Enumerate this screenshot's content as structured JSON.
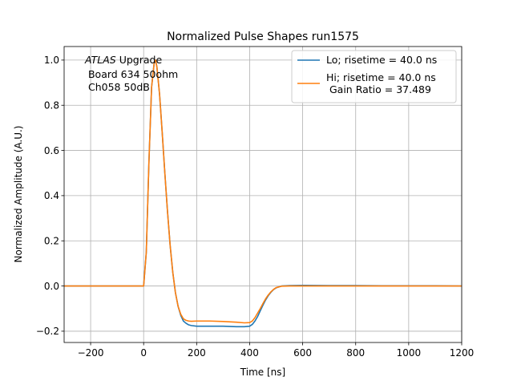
{
  "chart_data": {
    "type": "line",
    "title": "Normalized Pulse Shapes run1575",
    "xlabel": "Time [ns]",
    "ylabel": "Normalized Amplitude (A.U.)",
    "xlim": [
      -300,
      1200
    ],
    "ylim": [
      -0.25,
      1.06
    ],
    "xticks": [
      -200,
      0,
      200,
      400,
      600,
      800,
      1000,
      1200
    ],
    "xtick_labels": [
      "−200",
      "0",
      "200",
      "400",
      "600",
      "800",
      "1000",
      "1200"
    ],
    "yticks": [
      -0.2,
      0.0,
      0.2,
      0.4,
      0.6,
      0.8,
      1.0
    ],
    "ytick_labels": [
      "−0.2",
      "0.0",
      "0.2",
      "0.4",
      "0.6",
      "0.8",
      "1.0"
    ],
    "grid": true,
    "legend_position": "top-right",
    "annotation": {
      "atlas": "ATLAS",
      "upgrade": " Upgrade",
      "board": " Board 634 50ohm",
      "channel": " Ch058 50dB"
    },
    "series": [
      {
        "name": "Lo; risetime = 40.0 ns",
        "color": "#1f77b4",
        "x": [
          -300,
          -100,
          0,
          10,
          20,
          30,
          40,
          45,
          50,
          60,
          70,
          80,
          90,
          100,
          110,
          120,
          130,
          140,
          150,
          160,
          170,
          180,
          200,
          250,
          300,
          350,
          380,
          400,
          410,
          420,
          430,
          440,
          450,
          460,
          470,
          480,
          490,
          500,
          520,
          550,
          600,
          700,
          800,
          900,
          1000,
          1100,
          1200
        ],
        "y": [
          0.0,
          0.0,
          0.0,
          0.15,
          0.55,
          0.88,
          0.99,
          1.0,
          0.97,
          0.85,
          0.68,
          0.5,
          0.33,
          0.18,
          0.06,
          -0.03,
          -0.09,
          -0.13,
          -0.155,
          -0.165,
          -0.172,
          -0.175,
          -0.178,
          -0.178,
          -0.178,
          -0.18,
          -0.18,
          -0.178,
          -0.17,
          -0.155,
          -0.135,
          -0.11,
          -0.085,
          -0.062,
          -0.043,
          -0.028,
          -0.016,
          -0.008,
          0.0,
          0.002,
          0.003,
          0.002,
          0.002,
          0.001,
          0.001,
          0.001,
          0.0
        ]
      },
      {
        "name": "Hi; risetime = 40.0 ns\n Gain Ratio = 37.489",
        "color": "#ff7f0e",
        "x": [
          -300,
          -100,
          0,
          10,
          20,
          30,
          40,
          45,
          50,
          60,
          70,
          80,
          90,
          100,
          110,
          120,
          130,
          140,
          150,
          160,
          170,
          180,
          200,
          250,
          300,
          350,
          380,
          400,
          410,
          420,
          430,
          440,
          450,
          460,
          470,
          480,
          490,
          500,
          520,
          550,
          600,
          700,
          800,
          900,
          1000,
          1100,
          1200
        ],
        "y": [
          0.0,
          0.0,
          0.0,
          0.15,
          0.55,
          0.88,
          0.99,
          1.0,
          0.97,
          0.85,
          0.68,
          0.5,
          0.33,
          0.18,
          0.06,
          -0.03,
          -0.09,
          -0.125,
          -0.145,
          -0.152,
          -0.155,
          -0.156,
          -0.155,
          -0.155,
          -0.157,
          -0.16,
          -0.163,
          -0.162,
          -0.155,
          -0.14,
          -0.12,
          -0.1,
          -0.078,
          -0.057,
          -0.04,
          -0.026,
          -0.015,
          -0.007,
          -0.001,
          0.0,
          0.0,
          0.0,
          0.0,
          0.0,
          0.0,
          0.0,
          0.0
        ]
      }
    ]
  }
}
